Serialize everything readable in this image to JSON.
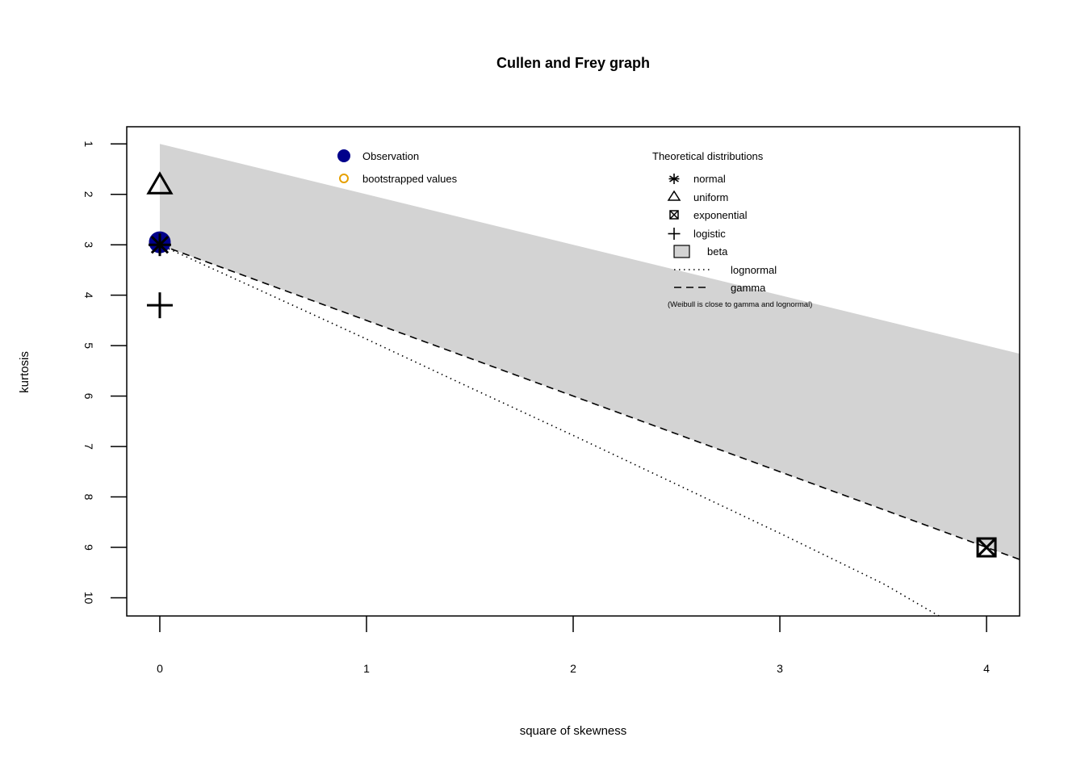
{
  "chart_data": {
    "type": "scatter",
    "title": "Cullen and Frey graph",
    "xlabel": "square of skewness",
    "ylabel": "kurtosis",
    "xlim": [
      -0.16,
      4.16
    ],
    "ylim": [
      10.36,
      0.66
    ],
    "y_axis_reversed": true,
    "x_ticks": [
      "0",
      "1",
      "2",
      "3",
      "4"
    ],
    "y_ticks": [
      "1",
      "2",
      "3",
      "4",
      "5",
      "6",
      "7",
      "8",
      "9",
      "10"
    ],
    "observation": {
      "x": 0.0,
      "y": 2.95
    },
    "theoretical_points": [
      {
        "name": "normal",
        "x": 0,
        "y": 3
      },
      {
        "name": "uniform",
        "x": 0,
        "y": 1.8
      },
      {
        "name": "exponential",
        "x": 4,
        "y": 9
      },
      {
        "name": "logistic",
        "x": 0,
        "y": 4.2
      }
    ],
    "beta_region": {
      "upper": [
        [
          0,
          1
        ],
        [
          4.16,
          5.16
        ]
      ],
      "lower": [
        [
          0,
          3
        ],
        [
          4.16,
          9.24
        ]
      ]
    },
    "gamma_line": [
      [
        0,
        3
      ],
      [
        4.16,
        9.24
      ]
    ],
    "lognormal_line": [
      [
        0,
        3
      ],
      [
        0.5,
        3.93
      ],
      [
        1,
        4.87
      ],
      [
        1.5,
        5.83
      ],
      [
        2,
        6.78
      ],
      [
        2.5,
        7.75
      ],
      [
        3,
        8.72
      ],
      [
        3.5,
        9.72
      ],
      [
        3.77,
        10.36
      ]
    ]
  },
  "legend_observation": {
    "items": [
      {
        "label": "Observation",
        "color": "#00008B"
      },
      {
        "label": "bootstrapped values",
        "color": "#E6A000"
      }
    ]
  },
  "legend_theoretical": {
    "title": "Theoretical distributions",
    "items": [
      {
        "label": "normal",
        "symbol": "asterisk-icon"
      },
      {
        "label": "uniform",
        "symbol": "triangle-icon"
      },
      {
        "label": "exponential",
        "symbol": "boxed-x-icon"
      },
      {
        "label": "logistic",
        "symbol": "plus-icon"
      },
      {
        "label": "beta",
        "symbol": "gray-box-icon"
      },
      {
        "label": "lognormal",
        "symbol": "dotted-line-icon"
      },
      {
        "label": "gamma",
        "symbol": "dashed-line-icon"
      }
    ],
    "note": "(Weibull is close to gamma and lognormal)"
  },
  "colors": {
    "beta_fill": "#D3D3D3",
    "observation": "#00008B",
    "bootstrap": "#E6A000",
    "ink": "#000000"
  }
}
